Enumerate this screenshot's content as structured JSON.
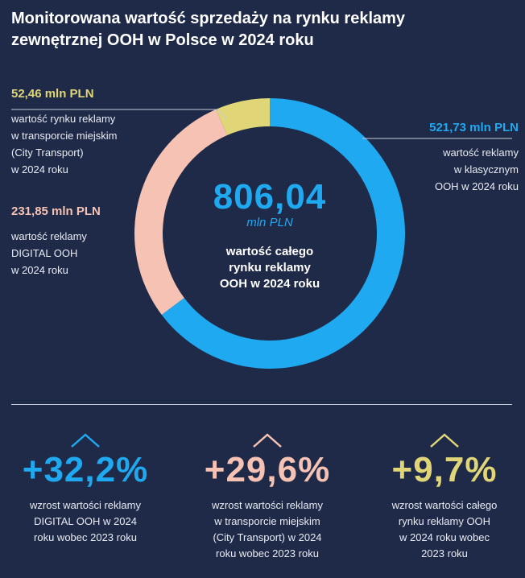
{
  "title": "Monitorowana wartość sprzedaży na rynku reklamy\nzewnętrznej OOH w Polsce w 2024 roku",
  "colors": {
    "background": "#1e2a47",
    "classic": "#1fa9f0",
    "digital": "#f6c2b4",
    "city_transport": "#e0d677"
  },
  "chart_data": {
    "type": "pie",
    "subtype": "donut",
    "unit": "mln PLN",
    "total": {
      "value": 806.04,
      "display": "806,04",
      "unit": "mln PLN",
      "label": "wartość całego\nrynku reklamy\nOOH w 2024 roku"
    },
    "slices": [
      {
        "key": "classic",
        "value": 521.73,
        "value_label": "521,73 mln PLN",
        "description": "wartość reklamy\nw klasycznym\nOOH w 2024 roku",
        "color": "#1fa9f0"
      },
      {
        "key": "digital",
        "value": 231.85,
        "value_label": "231,85 mln PLN",
        "description": "wartość reklamy\nDIGITAL OOH\nw 2024 roku",
        "color": "#f6c2b4"
      },
      {
        "key": "city_transport",
        "value": 52.46,
        "value_label": "52,46 mln PLN",
        "description": "wartość rynku reklamy\nw transporcie miejskim\n(City Transport)\nw 2024 roku",
        "color": "#e0d677"
      }
    ]
  },
  "stats": [
    {
      "value": "+32,2%",
      "description": "wzrost wartości reklamy\nDIGITAL OOH w 2024\nroku wobec 2023 roku",
      "color": "#1fa9f0",
      "icon": "chevron-up-icon"
    },
    {
      "value": "+29,6%",
      "description": "wzrost wartości reklamy\nw transporcie miejskim\n(City Transport) w 2024\nroku wobec 2023 roku",
      "color": "#f6c2b4",
      "icon": "chevron-up-icon"
    },
    {
      "value": "+9,7%",
      "description": "wzrost wartości całego\nrynku reklamy OOH\nw 2024 roku wobec\n2023 roku",
      "color": "#e0d677",
      "icon": "chevron-up-icon"
    }
  ]
}
